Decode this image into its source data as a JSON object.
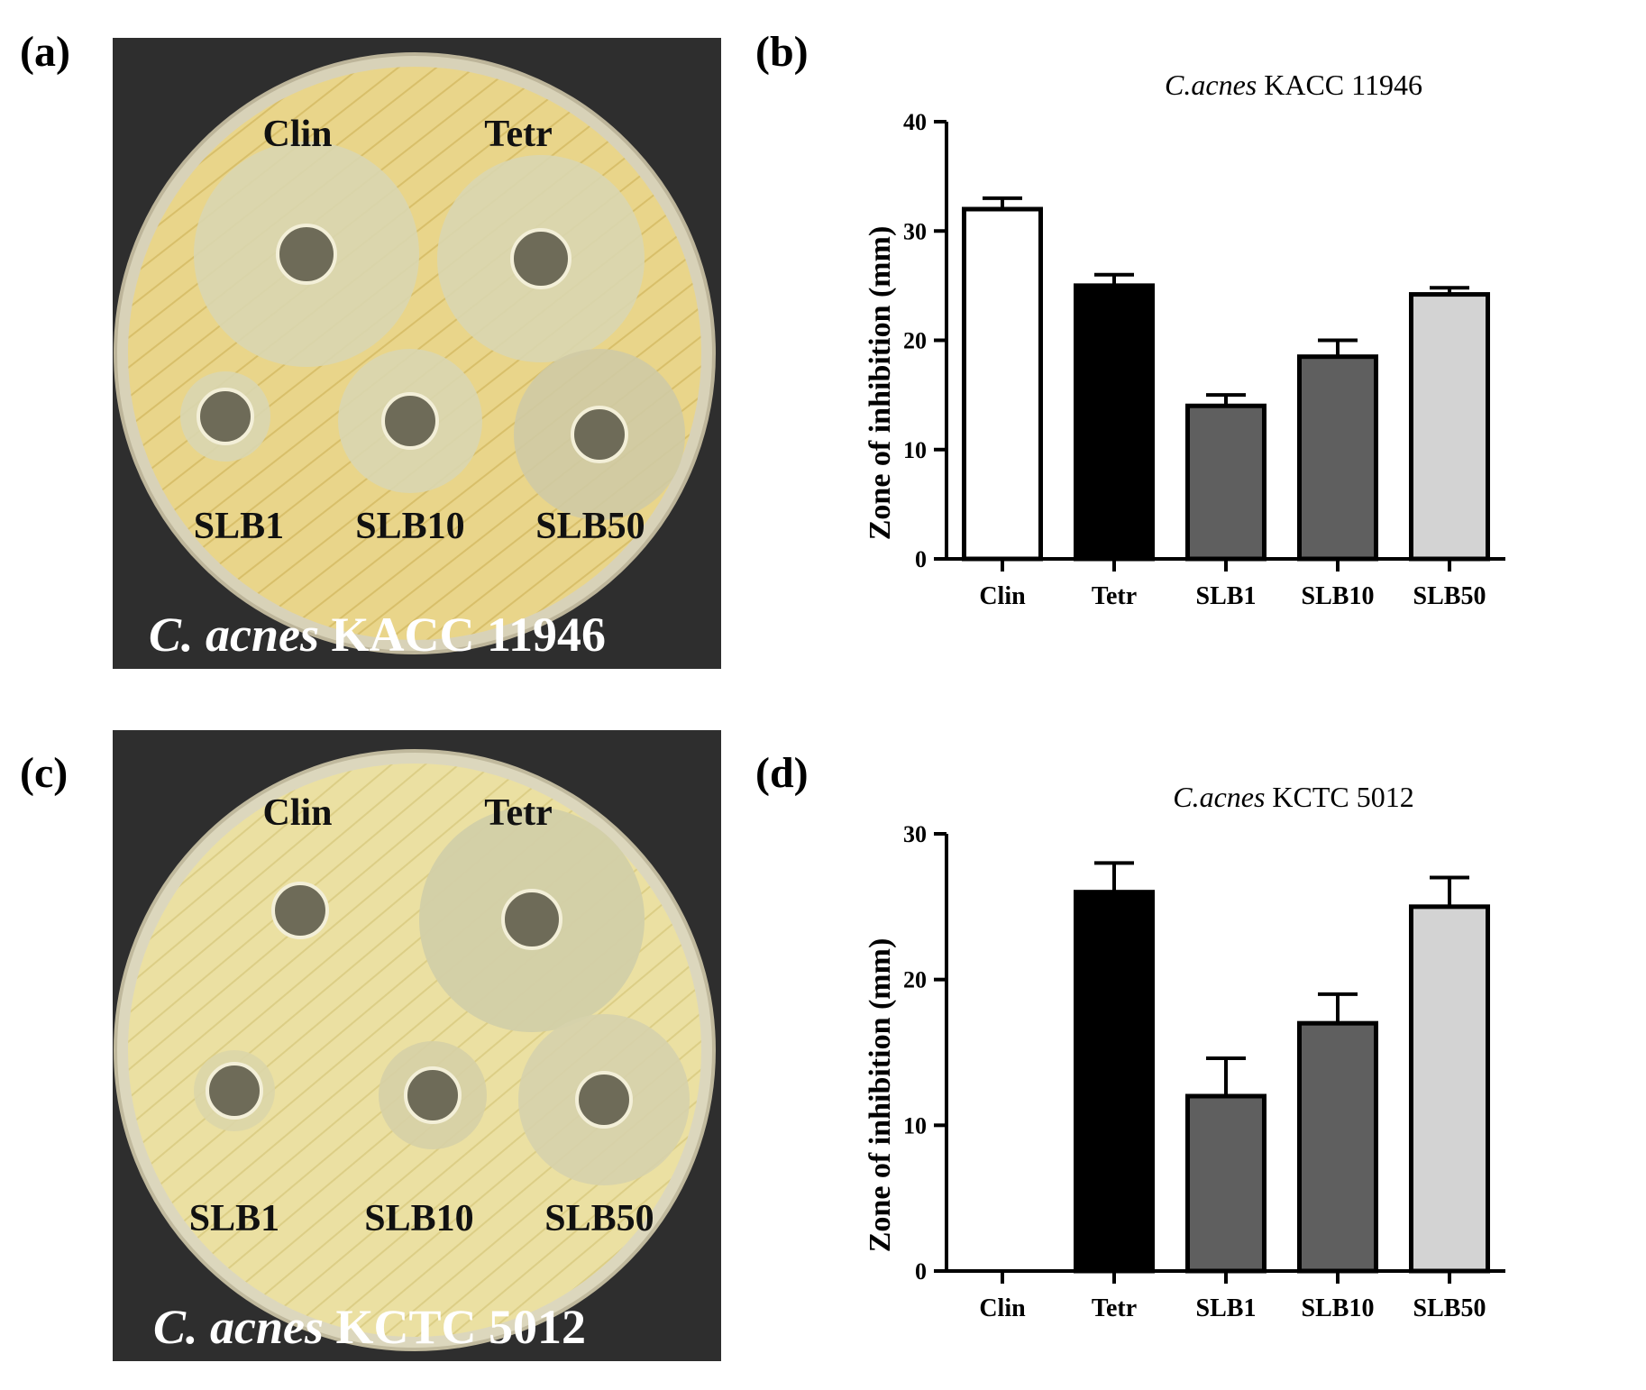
{
  "panels": {
    "a": "(a)",
    "b": "(b)",
    "c": "(c)",
    "d": "(d)"
  },
  "photos": [
    {
      "labels": {
        "clin": "Clin",
        "tetr": "Tetr",
        "slb1": "SLB1",
        "slb10": "SLB10",
        "slb50": "SLB50"
      },
      "caption_italic": "C. acnes",
      "caption_rest": " KACC 11946"
    },
    {
      "labels": {
        "clin": "Clin",
        "tetr": "Tetr",
        "slb1": "SLB1",
        "slb10": "SLB10",
        "slb50": "SLB50"
      },
      "caption_italic": "C. acnes",
      "caption_rest": " KCTC 5012"
    }
  ],
  "colors": {
    "clin": "#ffffff",
    "tetr": "#000000",
    "slb1": "#5f5f5f",
    "slb10": "#5f5f5f",
    "slb50": "#d3d3d3"
  },
  "chart_data": [
    {
      "type": "bar",
      "title_italic": "C.acnes",
      "title_rest": " KACC 11946",
      "ylabel": "Zone of inhibition (mm)",
      "xlabel": "",
      "categories": [
        "Clin",
        "Tetr",
        "SLB1",
        "SLB10",
        "SLB50"
      ],
      "values": [
        32,
        25,
        14,
        18.5,
        24.2
      ],
      "errors": [
        1,
        1,
        1,
        1.5,
        0.6
      ],
      "ylim": [
        0,
        40
      ],
      "yticks": [
        "0",
        "10",
        "20",
        "30",
        "40"
      ],
      "grid": false
    },
    {
      "type": "bar",
      "title_italic": "C.acnes",
      "title_rest": " KCTC 5012",
      "ylabel": "Zone of inhibition (mm)",
      "xlabel": "",
      "categories": [
        "Clin",
        "Tetr",
        "SLB1",
        "SLB10",
        "SLB50"
      ],
      "values": [
        0,
        26,
        12,
        17,
        25
      ],
      "errors": [
        0,
        2,
        2.6,
        2,
        2
      ],
      "ylim": [
        0,
        30
      ],
      "yticks": [
        "0",
        "10",
        "20",
        "30"
      ],
      "grid": false
    }
  ]
}
